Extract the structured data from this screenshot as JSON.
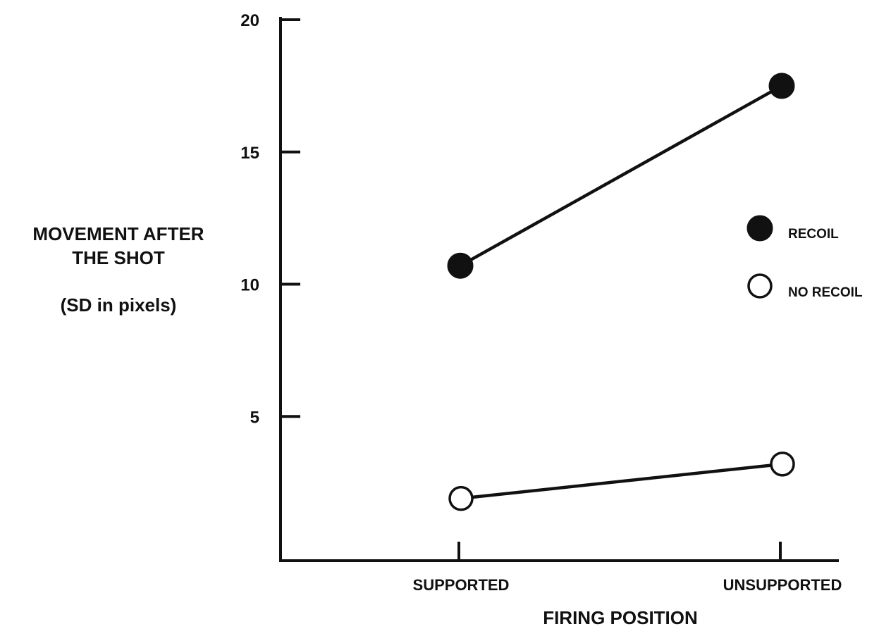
{
  "chart_data": {
    "type": "line",
    "title": "",
    "xlabel": "FIRING POSITION",
    "ylabel": [
      "MOVEMENT AFTER",
      "THE SHOT",
      "(SD in pixels)"
    ],
    "categories": [
      "SUPPORTED",
      "UNSUPPORTED"
    ],
    "ylim": [
      0,
      20
    ],
    "yticks": [
      5,
      10,
      15,
      20
    ],
    "grid": false,
    "legend_position": "right",
    "series": [
      {
        "name": "RECOIL",
        "marker": "filled-circle",
        "values": [
          10.7,
          17.5
        ]
      },
      {
        "name": "NO RECOIL",
        "marker": "open-circle",
        "values": [
          1.9,
          3.2
        ]
      }
    ]
  },
  "colors": {
    "ink": "#111111",
    "background": "#ffffff"
  }
}
